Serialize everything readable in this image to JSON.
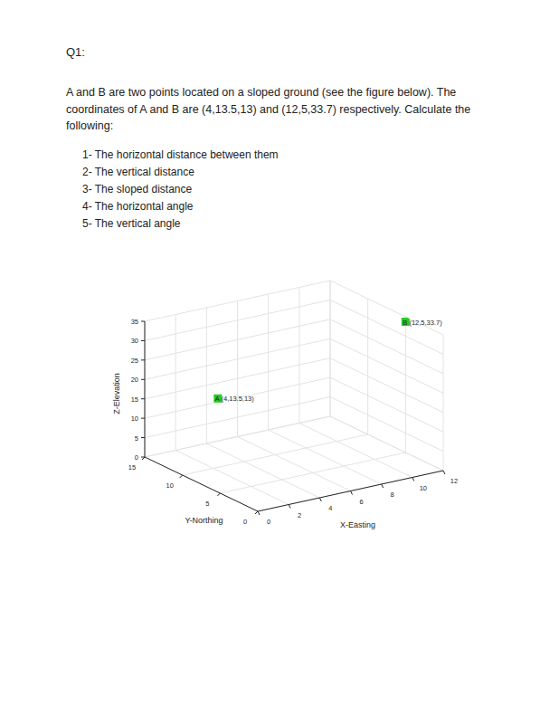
{
  "document": {
    "heading": "Q1:",
    "paragraph": [
      "A and B are two points located on a sloped ground (see the figure below). The",
      "coordinates of A and B are (4,13.5,13) and (12,5,33.7) respectively. Calculate the",
      "following:"
    ],
    "questions": [
      "1- The horizontal distance between them",
      "2- The vertical distance",
      "3- The sloped distance",
      "4- The horizontal angle",
      "5- The vertical angle"
    ]
  },
  "chart_data": {
    "type": "scatter3d",
    "x_label": "X-Easting",
    "y_label": "Y-Northing",
    "z_label": "Z-Elevation",
    "x": [
      4,
      12
    ],
    "y": [
      13.5,
      5
    ],
    "z": [
      13,
      33.7
    ],
    "point_labels": [
      "A (4,13.5,13)",
      "B (12,5,33.7)"
    ],
    "color": "#22cc22",
    "marker": "square",
    "xlim": [
      0,
      12
    ],
    "xticks": [
      0,
      2,
      4,
      6,
      8,
      10,
      12
    ],
    "ylim": [
      0,
      15
    ],
    "yticks": [
      0,
      5,
      10,
      15
    ],
    "zlim": [
      0,
      35
    ],
    "zticks": [
      0,
      5,
      10,
      15,
      20,
      25,
      30,
      35
    ],
    "grid": true
  }
}
